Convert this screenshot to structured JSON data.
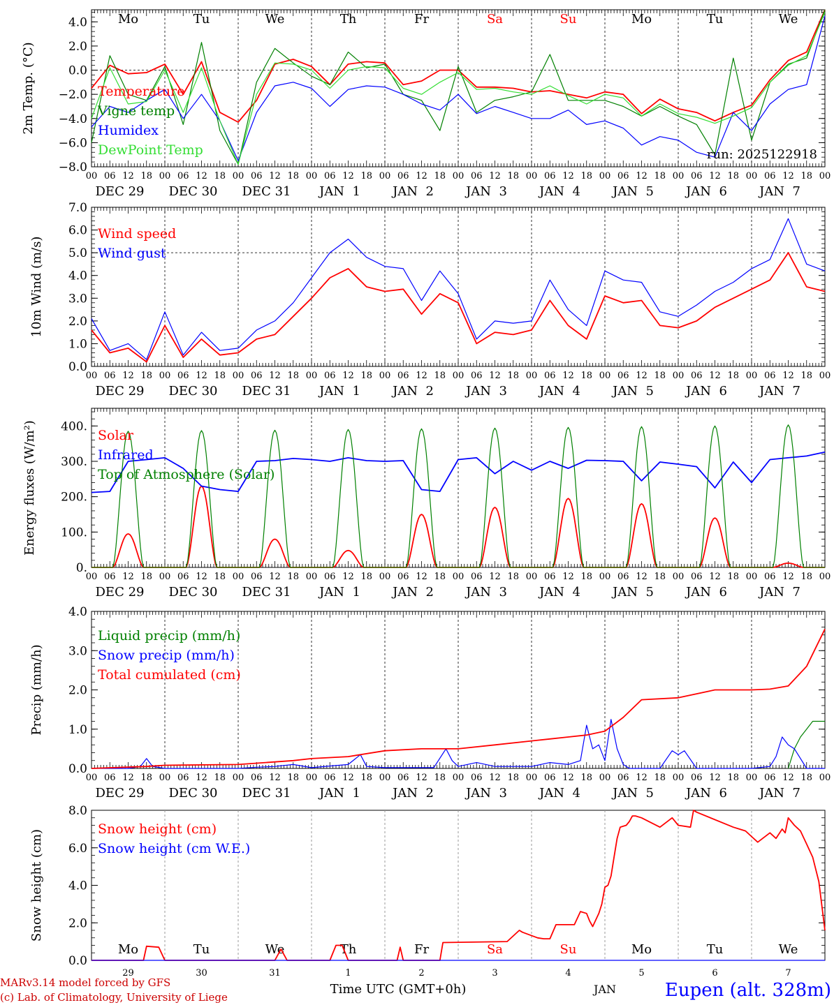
{
  "meta": {
    "run_label": "run: 2025122918",
    "credit_line1": "MARv3.14 model forced by GFS",
    "credit_line2": "(c) Lab. of Climatology, University of Liege",
    "xlabel": "Time UTC (GMT+0h)",
    "month_label": "JAN",
    "station": "Eupen (alt. 328m)"
  },
  "colors": {
    "red": "#ff0000",
    "green": "#008000",
    "lightgreen": "#33dd33",
    "blue": "#0000ff",
    "darkred": "#cc0000",
    "black": "#000000"
  },
  "days": {
    "weekdays": [
      "Mo",
      "Tu",
      "We",
      "Th",
      "Fr",
      "Sa",
      "Su",
      "Mo",
      "Tu",
      "We"
    ],
    "weekday_colors": [
      "#000000",
      "#000000",
      "#000000",
      "#000000",
      "#000000",
      "#ff0000",
      "#ff0000",
      "#000000",
      "#000000",
      "#000000"
    ],
    "dates": [
      "DEC 29",
      "DEC 30",
      "DEC 31",
      "JAN  1",
      "JAN  2",
      "JAN  3",
      "JAN  4",
      "JAN  5",
      "JAN  6",
      "JAN  7"
    ],
    "day_numbers": [
      "29",
      "30",
      "31",
      "1",
      "2",
      "3",
      "4",
      "5",
      "6",
      "7"
    ],
    "hour_ticks": [
      "00",
      "06",
      "12",
      "18"
    ],
    "final_tick": "00"
  },
  "chart_data": [
    {
      "type": "line",
      "title": "",
      "ylabel": "2m Temp. (°C)",
      "ylim": [
        -8,
        5
      ],
      "yticks": [
        "4.0",
        "2.0",
        "0.0",
        "−2.0",
        "−4.0",
        "−6.0",
        "−8.0"
      ],
      "ytick_values": [
        4,
        2,
        0,
        -2,
        -4,
        -6,
        -8
      ],
      "ref_line": 0,
      "x_hours": [
        0,
        6,
        12,
        18,
        24,
        30,
        36,
        42,
        48,
        54,
        60,
        66,
        72,
        78,
        84,
        90,
        96,
        102,
        108,
        114,
        120,
        126,
        132,
        138,
        144,
        150,
        156,
        162,
        168,
        174,
        180,
        186,
        192,
        198,
        204,
        210,
        216,
        222,
        228,
        234,
        240
      ],
      "series": [
        {
          "name": "Temperature",
          "color": "#ff0000",
          "values": [
            -1.5,
            0.4,
            -0.3,
            -0.2,
            0.5,
            -2.0,
            0.7,
            -3.5,
            -4.3,
            -2.5,
            0.5,
            0.9,
            0.3,
            -1.2,
            0.5,
            0.7,
            0.6,
            -1.2,
            -0.9,
            0.0,
            0.0,
            -1.4,
            -1.4,
            -1.5,
            -1.8,
            -1.7,
            -2.0,
            -2.3,
            -1.8,
            -2.0,
            -3.6,
            -2.4,
            -3.2,
            -3.5,
            -4.2,
            -3.5,
            -2.9,
            -0.8,
            0.8,
            1.5,
            5.0
          ]
        },
        {
          "name": "Vigne temp",
          "color": "#008000",
          "values": [
            -6.0,
            1.2,
            -2.0,
            -2.5,
            0.3,
            -4.5,
            2.3,
            -5.0,
            -7.8,
            -1.0,
            1.8,
            0.6,
            -0.5,
            -1.2,
            1.5,
            0.2,
            0.5,
            -2.0,
            -2.5,
            -5.0,
            0.3,
            -3.5,
            -2.5,
            -2.2,
            -1.8,
            1.3,
            -2.5,
            -2.5,
            -2.5,
            -3.0,
            -3.8,
            -3.0,
            -3.8,
            -4.5,
            -7.0,
            1.0,
            -5.8,
            -1.0,
            0.5,
            1.0,
            5.0
          ]
        },
        {
          "name": "Humidex",
          "color": "#0000ff",
          "values": [
            -4.7,
            -3.0,
            -3.5,
            -2.5,
            -1.6,
            -4.0,
            -2.0,
            -4.2,
            -7.5,
            -3.5,
            -1.3,
            -1.0,
            -1.5,
            -3.0,
            -1.6,
            -1.3,
            -1.4,
            -2.0,
            -2.8,
            -3.3,
            -2.0,
            -3.6,
            -3.0,
            -3.5,
            -4.0,
            -4.0,
            -3.3,
            -4.5,
            -4.2,
            -4.8,
            -6.2,
            -5.5,
            -5.8,
            -6.8,
            -7.2,
            -3.5,
            -5.0,
            -2.8,
            -1.6,
            -1.2,
            4.5
          ]
        },
        {
          "name": "DewPoint Temp",
          "color": "#33dd33",
          "values": [
            -4.0,
            0.2,
            -2.8,
            -2.6,
            0.0,
            -3.5,
            0.2,
            -4.2,
            -7.8,
            -2.0,
            0.6,
            0.5,
            0.0,
            -1.5,
            0.0,
            0.3,
            0.2,
            -1.5,
            -2.0,
            -1.0,
            -0.2,
            -1.6,
            -1.5,
            -1.8,
            -2.0,
            -1.3,
            -2.1,
            -2.8,
            -2.0,
            -2.3,
            -3.8,
            -2.8,
            -3.6,
            -3.9,
            -4.4,
            -3.8,
            -3.1,
            -1.0,
            0.4,
            1.2,
            4.8
          ]
        }
      ]
    },
    {
      "type": "line",
      "title": "",
      "ylabel": "10m Wind (m/s)",
      "ylim": [
        0,
        7
      ],
      "yticks": [
        "7.0",
        "6.0",
        "5.0",
        "4.0",
        "3.0",
        "2.0",
        "1.0",
        "0.0"
      ],
      "ytick_values": [
        7,
        6,
        5,
        4,
        3,
        2,
        1,
        0
      ],
      "ref_line": 5,
      "x_hours": [
        0,
        6,
        12,
        18,
        24,
        30,
        36,
        42,
        48,
        54,
        60,
        66,
        72,
        78,
        84,
        90,
        96,
        102,
        108,
        114,
        120,
        126,
        132,
        138,
        144,
        150,
        156,
        162,
        168,
        174,
        180,
        186,
        192,
        198,
        204,
        210,
        216,
        222,
        228,
        234,
        240
      ],
      "series": [
        {
          "name": "Wind speed",
          "color": "#ff0000",
          "values": [
            1.6,
            0.6,
            0.8,
            0.2,
            1.8,
            0.4,
            1.2,
            0.5,
            0.6,
            1.2,
            1.4,
            2.2,
            3.0,
            3.9,
            4.3,
            3.5,
            3.3,
            3.4,
            2.3,
            3.2,
            2.8,
            1.0,
            1.5,
            1.4,
            1.6,
            2.9,
            1.8,
            1.2,
            3.1,
            2.8,
            2.9,
            1.8,
            1.7,
            2.0,
            2.6,
            3.0,
            3.4,
            3.8,
            5.0,
            3.5,
            3.3
          ]
        },
        {
          "name": "Wind gust",
          "color": "#0000ff",
          "values": [
            2.1,
            0.7,
            1.0,
            0.3,
            2.4,
            0.5,
            1.5,
            0.7,
            0.8,
            1.6,
            2.0,
            2.8,
            3.9,
            5.0,
            5.6,
            4.8,
            4.4,
            4.3,
            2.9,
            4.2,
            3.2,
            1.2,
            2.0,
            1.9,
            2.0,
            3.8,
            2.5,
            1.8,
            4.2,
            3.8,
            3.7,
            2.4,
            2.2,
            2.7,
            3.3,
            3.7,
            4.3,
            4.7,
            6.5,
            4.5,
            4.2
          ]
        }
      ]
    },
    {
      "type": "line",
      "title": "",
      "ylabel": "Energy fluxes (W/m²)",
      "ylim": [
        0,
        450
      ],
      "yticks": [
        "400.",
        "300.",
        "200.",
        "100.",
        "0."
      ],
      "ytick_values": [
        400,
        300,
        200,
        100,
        0
      ],
      "series": [
        {
          "name": "Solar",
          "color": "#ff0000",
          "daily_peaks": [
            95,
            230,
            80,
            48,
            150,
            170,
            195,
            180,
            140,
            12
          ]
        },
        {
          "name": "Infrared",
          "color": "#0000ff",
          "x_hours": [
            0,
            6,
            12,
            18,
            24,
            30,
            36,
            42,
            48,
            54,
            60,
            66,
            72,
            78,
            84,
            90,
            96,
            102,
            108,
            114,
            120,
            126,
            132,
            138,
            144,
            150,
            156,
            162,
            168,
            174,
            180,
            186,
            192,
            198,
            204,
            210,
            216,
            222,
            228,
            234,
            240
          ],
          "values": [
            212,
            215,
            300,
            305,
            310,
            280,
            230,
            220,
            215,
            300,
            302,
            308,
            305,
            300,
            310,
            302,
            300,
            302,
            220,
            215,
            305,
            310,
            265,
            300,
            275,
            300,
            280,
            303,
            302,
            300,
            245,
            298,
            292,
            285,
            225,
            298,
            240,
            305,
            310,
            315,
            326
          ]
        },
        {
          "name": "Top of Atmosphere (Solar)",
          "color": "#008000",
          "daily_peaks": [
            385,
            387,
            388,
            390,
            392,
            394,
            396,
            398,
            400,
            403
          ]
        }
      ]
    },
    {
      "type": "line",
      "title": "",
      "ylabel": "Precip (mm/h)",
      "ylim": [
        0,
        4
      ],
      "yticks": [
        "4.0",
        "3.0",
        "2.0",
        "1.0",
        "0.0"
      ],
      "ytick_values": [
        4,
        3,
        2,
        1,
        0
      ],
      "series": [
        {
          "name": "Liquid precip (mm/h)",
          "color": "#008000",
          "x_hours": [
            228,
            230,
            232,
            234,
            236,
            240
          ],
          "values": [
            0,
            0.5,
            0.8,
            1.0,
            1.2,
            1.2
          ]
        },
        {
          "name": "Snow precip (mm/h)",
          "color": "#0000ff",
          "x_hours": [
            0,
            12,
            16,
            18,
            20,
            24,
            48,
            54,
            60,
            66,
            72,
            84,
            88,
            90,
            96,
            112,
            116,
            118,
            120,
            126,
            132,
            144,
            150,
            156,
            160,
            162,
            164,
            166,
            168,
            170,
            172,
            174,
            176,
            180,
            186,
            190,
            192,
            194,
            198,
            204,
            216,
            222,
            224,
            226,
            228,
            230,
            234,
            240
          ],
          "values": [
            0,
            0,
            0.05,
            0.25,
            0.05,
            0,
            0,
            0.03,
            0.05,
            0.1,
            0.02,
            0.1,
            0.35,
            0.05,
            0.02,
            0.02,
            0.5,
            0.2,
            0.05,
            0.15,
            0.05,
            0.05,
            0.15,
            0.1,
            0.2,
            1.1,
            0.5,
            0.6,
            0.2,
            1.25,
            0.5,
            0.1,
            0,
            0,
            0,
            0.45,
            0.35,
            0.45,
            0,
            0,
            0,
            0.05,
            0.3,
            0.8,
            0.6,
            0.5,
            0,
            0
          ]
        },
        {
          "name": "Total cumulated (cm)",
          "color": "#ff0000",
          "x_hours": [
            0,
            18,
            24,
            48,
            66,
            72,
            84,
            96,
            108,
            120,
            132,
            144,
            150,
            156,
            162,
            168,
            174,
            180,
            192,
            204,
            216,
            222,
            228,
            234,
            240
          ],
          "values": [
            0,
            0.05,
            0.08,
            0.1,
            0.2,
            0.25,
            0.3,
            0.45,
            0.5,
            0.5,
            0.6,
            0.7,
            0.75,
            0.8,
            0.85,
            0.95,
            1.3,
            1.75,
            1.8,
            2.0,
            2.0,
            2.02,
            2.1,
            2.6,
            3.55
          ]
        }
      ]
    },
    {
      "type": "line",
      "title": "",
      "ylabel": "Snow height (cm)",
      "ylim": [
        0,
        8
      ],
      "yticks": [
        "8.0",
        "6.0",
        "4.0",
        "2.0",
        "0.0"
      ],
      "ytick_values": [
        8,
        6,
        4,
        2,
        0
      ],
      "series": [
        {
          "name": "Snow height (cm)",
          "color": "#ff0000",
          "x_hours": [
            0,
            17,
            18,
            22,
            24,
            60,
            62,
            63,
            64,
            78,
            80,
            82,
            84,
            100,
            101,
            102,
            114,
            115,
            136,
            140,
            141,
            146,
            148,
            150,
            152,
            154,
            156,
            158,
            160,
            162,
            163,
            164,
            166,
            167,
            168,
            169,
            170,
            171,
            172,
            173,
            175,
            176,
            177,
            178,
            180,
            186,
            190,
            192,
            196,
            197,
            198,
            210,
            212,
            214,
            216,
            218,
            222,
            224,
            226,
            227,
            228,
            230,
            232,
            234,
            236,
            238,
            240
          ],
          "values": [
            0,
            0,
            0.75,
            0.7,
            0,
            0,
            0.6,
            0.3,
            0,
            0,
            0.8,
            0.8,
            0,
            0,
            0.7,
            0,
            0,
            0.95,
            1.0,
            1.6,
            1.5,
            1.2,
            1.15,
            1.15,
            1.9,
            1.9,
            1.9,
            1.9,
            2.6,
            2.5,
            2.1,
            1.8,
            2.5,
            3.0,
            3.9,
            4.0,
            4.5,
            5.5,
            6.5,
            7.1,
            7.2,
            7.4,
            7.7,
            7.7,
            7.6,
            7.1,
            7.6,
            7.2,
            7.1,
            8.0,
            7.9,
            7.1,
            7.0,
            6.9,
            6.6,
            6.3,
            6.8,
            6.5,
            7.0,
            6.8,
            7.6,
            7.2,
            6.9,
            6.2,
            5.5,
            4.2,
            1.6
          ]
        },
        {
          "name": "Snow height (cm W.E.)",
          "color": "#0000ff",
          "x_hours": [
            0,
            240
          ],
          "values": [
            0,
            0
          ]
        }
      ]
    }
  ]
}
